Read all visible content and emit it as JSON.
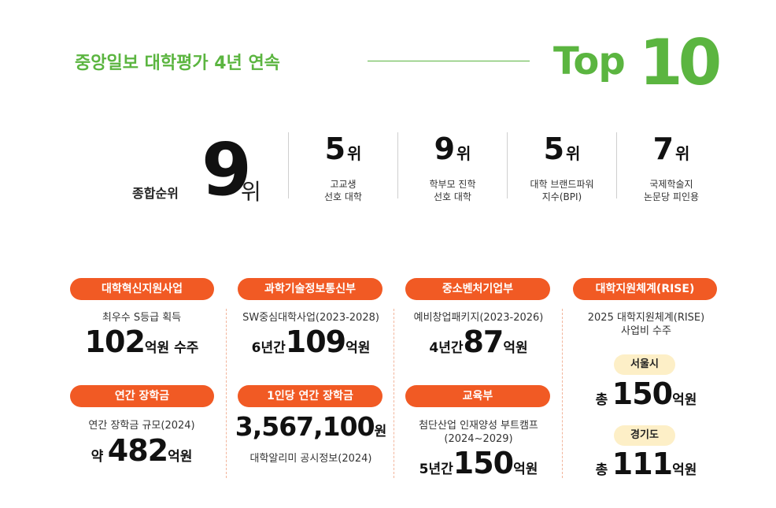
{
  "header": {
    "headline": "중앙일보 대학평가 4년 연속",
    "top_word": "Top",
    "top_num": "10"
  },
  "overall": {
    "label": "종합순위",
    "rank": "9",
    "unit": "위"
  },
  "ranks": [
    {
      "num": "5",
      "unit": "위",
      "line1": "고교생",
      "line2": "선호 대학"
    },
    {
      "num": "9",
      "unit": "위",
      "line1": "학부모 진학",
      "line2": "선호 대학"
    },
    {
      "num": "5",
      "unit": "위",
      "line1": "대학 브랜드파워",
      "line2": "지수(BPI)"
    },
    {
      "num": "7",
      "unit": "위",
      "line1": "국제학술지",
      "line2": "논문당 피인용"
    }
  ],
  "cards": {
    "c1": {
      "title": "대학혁신지원사업",
      "sub": "최우수 S등급 획득",
      "num": "102",
      "unit": "억원 수주"
    },
    "c2": {
      "title": "과학기술정보통신부",
      "sub": "SW중심대학사업(2023-2028)",
      "pre": "6년간",
      "num": "109",
      "unit": "억원"
    },
    "c3": {
      "title": "중소벤처기업부",
      "sub": "예비창업패키지(2023-2026)",
      "pre": "4년간",
      "num": "87",
      "unit": "억원"
    },
    "c4": {
      "title": "대학지원체계(RISE)",
      "sub1": "2025 대학지원체계(RISE)",
      "sub2": "사업비 수주",
      "seoul_label": "서울시",
      "seoul_pre": "총",
      "seoul_num": "150",
      "seoul_unit": "억원",
      "gg_label": "경기도",
      "gg_pre": "총",
      "gg_num": "111",
      "gg_unit": "억원"
    },
    "c5": {
      "title": "연간 장학금",
      "sub": "연간 장학금 규모(2024)",
      "pre": "약",
      "num": "482",
      "unit": "억원"
    },
    "c6": {
      "title": "1인당 연간 장학금",
      "num": "3,567,100",
      "unit": "원",
      "sub": "대학알리미 공시정보(2024)"
    },
    "c7": {
      "title": "교육부",
      "sub1": "첨단산업 인재양성 부트캠프",
      "sub2": "(2024~2029)",
      "pre": "5년간",
      "num": "150",
      "unit": "억원"
    }
  }
}
